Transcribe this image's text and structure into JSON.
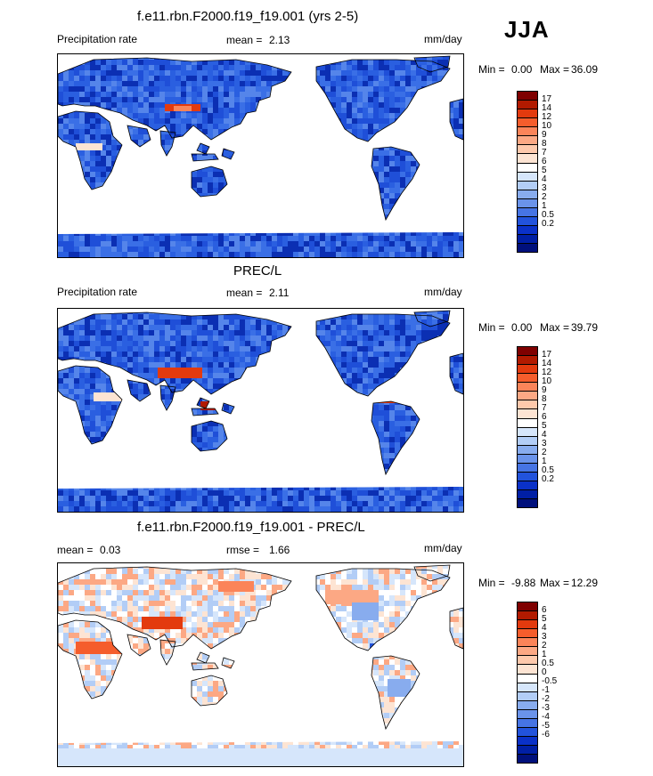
{
  "season": "JJA",
  "panels": [
    {
      "title": "f.e11.rbn.F2000.f19_f19.001 (yrs 2-5)",
      "variable": "Precipitation rate",
      "stat1_label": "mean =",
      "stat1_value": "2.13",
      "stat2_label": "",
      "stat2_value": "",
      "units": "mm/day",
      "min_label": "Min =",
      "min_value": "0.00",
      "max_label": "Max =",
      "max_value": "36.09",
      "colorbar": {
        "colors": [
          "#7f0000",
          "#b21a00",
          "#e33a0e",
          "#f55d2c",
          "#fb8459",
          "#fca884",
          "#fec9ac",
          "#fde4d3",
          "#ffffff",
          "#d6e6fb",
          "#b2cdf6",
          "#88acee",
          "#6a93ea",
          "#4674e4",
          "#2253dc",
          "#0a31c8",
          "#001fa5",
          "#00107c"
        ],
        "labels": [
          "17",
          "14",
          "12",
          "10",
          "9",
          "8",
          "7",
          "6",
          "5",
          "4",
          "3",
          "2",
          "1",
          "0.5",
          "0.2"
        ]
      }
    },
    {
      "title": "PREC/L",
      "variable": "Precipitation rate",
      "stat1_label": "mean =",
      "stat1_value": "2.11",
      "stat2_label": "",
      "stat2_value": "",
      "units": "mm/day",
      "min_label": "Min =",
      "min_value": "0.00",
      "max_label": "Max =",
      "max_value": "39.79",
      "colorbar": {
        "colors": [
          "#7f0000",
          "#b21a00",
          "#e33a0e",
          "#f55d2c",
          "#fb8459",
          "#fca884",
          "#fec9ac",
          "#fde4d3",
          "#ffffff",
          "#d6e6fb",
          "#b2cdf6",
          "#88acee",
          "#6a93ea",
          "#4674e4",
          "#2253dc",
          "#0a31c8",
          "#001fa5",
          "#00107c"
        ],
        "labels": [
          "17",
          "14",
          "12",
          "10",
          "9",
          "8",
          "7",
          "6",
          "5",
          "4",
          "3",
          "2",
          "1",
          "0.5",
          "0.2"
        ]
      }
    },
    {
      "title": "f.e11.rbn.F2000.f19_f19.001 - PREC/L",
      "variable": "",
      "stat1_label": "mean =",
      "stat1_value": "0.03",
      "stat2_label": "rmse =",
      "stat2_value": "1.66",
      "units": "mm/day",
      "min_label": "Min =",
      "min_value": "-9.88",
      "max_label": "Max =",
      "max_value": "12.29",
      "colorbar": {
        "colors": [
          "#7f0000",
          "#b21a00",
          "#e33a0e",
          "#f55d2c",
          "#fb8459",
          "#fca884",
          "#fec9ac",
          "#fde4d3",
          "#ffffff",
          "#d6e6fb",
          "#b2cdf6",
          "#88acee",
          "#6a93ea",
          "#4674e4",
          "#2253dc",
          "#0a31c8",
          "#001fa5",
          "#00107c"
        ],
        "labels": [
          "6",
          "5",
          "4",
          "3",
          "2",
          "1",
          "0.5",
          "0",
          "-0.5",
          "-1",
          "-2",
          "-3",
          "-4",
          "-5",
          "-6"
        ]
      }
    }
  ]
}
